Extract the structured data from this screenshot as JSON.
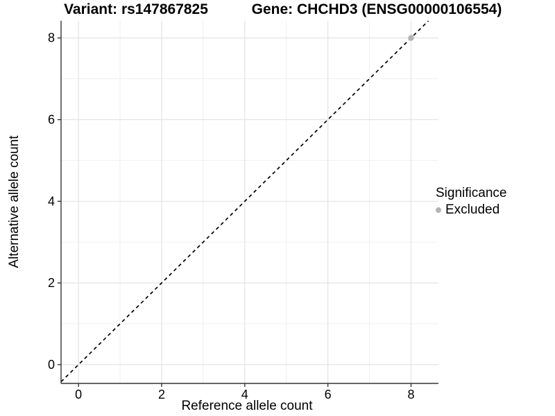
{
  "titles": {
    "variant": "Variant: rs147867825",
    "gene": "Gene: CHCHD3 (ENSG00000106554)"
  },
  "legend": {
    "title": "Significance",
    "items": [
      {
        "label": "Excluded",
        "color": "#b3b3b3"
      }
    ]
  },
  "chart_data": {
    "type": "scatter",
    "title_left": "Variant: rs147867825",
    "title_right": "Gene: CHCHD3 (ENSG00000106554)",
    "xlabel": "Reference allele count",
    "ylabel": "Alternative allele count",
    "xlim": [
      -0.42,
      8.66
    ],
    "ylim": [
      -0.46,
      8.42
    ],
    "x_ticks": [
      0,
      2,
      4,
      6,
      8
    ],
    "y_ticks": [
      0,
      2,
      4,
      6,
      8
    ],
    "x_minor_ticks": [
      1,
      3,
      5,
      7
    ],
    "y_minor_ticks": [
      1,
      3,
      5,
      7
    ],
    "grid": true,
    "legend_position": "right",
    "series": [
      {
        "name": "Excluded",
        "color": "#b3b3b3",
        "marker": "circle",
        "points": [
          {
            "x": 8,
            "y": 8
          }
        ]
      }
    ],
    "reference_line": {
      "kind": "identity",
      "slope": 1,
      "intercept": 0,
      "style": "dashed",
      "color": "#000000"
    },
    "colors": {
      "background": "#ffffff",
      "grid_major": "#e3e3e3",
      "grid_minor": "#efefef",
      "axis_line": "#333333",
      "tick_text": "#000000"
    }
  }
}
